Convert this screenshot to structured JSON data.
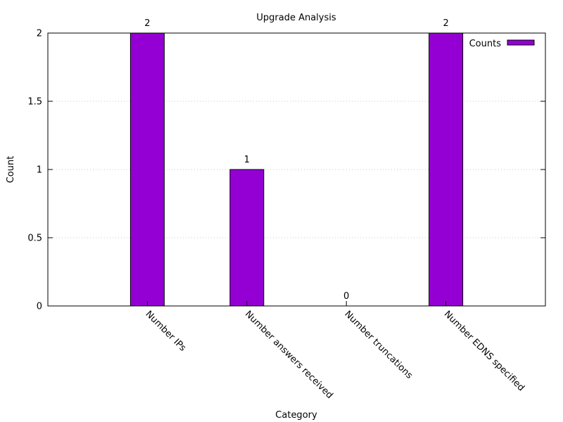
{
  "chart_data": {
    "type": "bar",
    "title": "Upgrade Analysis",
    "xlabel": "Category",
    "ylabel": "Count",
    "categories": [
      "Number IPs",
      "Number answers received",
      "Number truncations",
      "Number EDNS specified"
    ],
    "series": [
      {
        "name": "Counts",
        "values": [
          2,
          1,
          0,
          2
        ],
        "color": "#9400d3"
      }
    ],
    "data_labels": [
      "2",
      "1",
      "0",
      "2"
    ],
    "ylim": [
      0,
      2
    ],
    "yticks": [
      0,
      0.5,
      1,
      1.5,
      2
    ],
    "ytick_labels": [
      "0",
      "0.5",
      "1",
      "1.5",
      "2"
    ],
    "grid": true,
    "legend": "top-right"
  }
}
